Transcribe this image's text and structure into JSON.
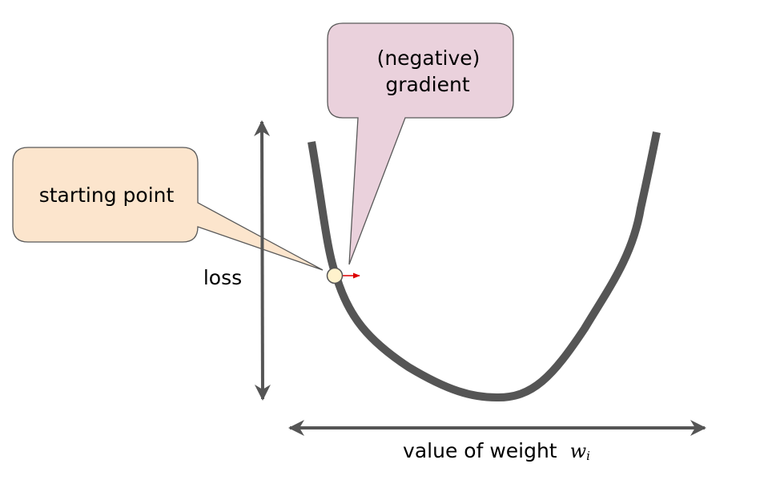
{
  "diagram": {
    "callout_gradient": {
      "line1": "(negative)",
      "line2": "gradient"
    },
    "callout_start": {
      "text": "starting point"
    },
    "y_axis_label": "loss",
    "x_axis_label": {
      "text": "value of weight",
      "symbol": "w",
      "subscript": "i"
    },
    "colors": {
      "curve": "#555555",
      "axis": "#555555",
      "gradient_callout_fill": "#ead1dc",
      "start_callout_fill": "#fce5cd",
      "start_point_fill": "#fff2cc",
      "gradient_arrow": "#dd0000",
      "callout_stroke": "#595959"
    }
  }
}
